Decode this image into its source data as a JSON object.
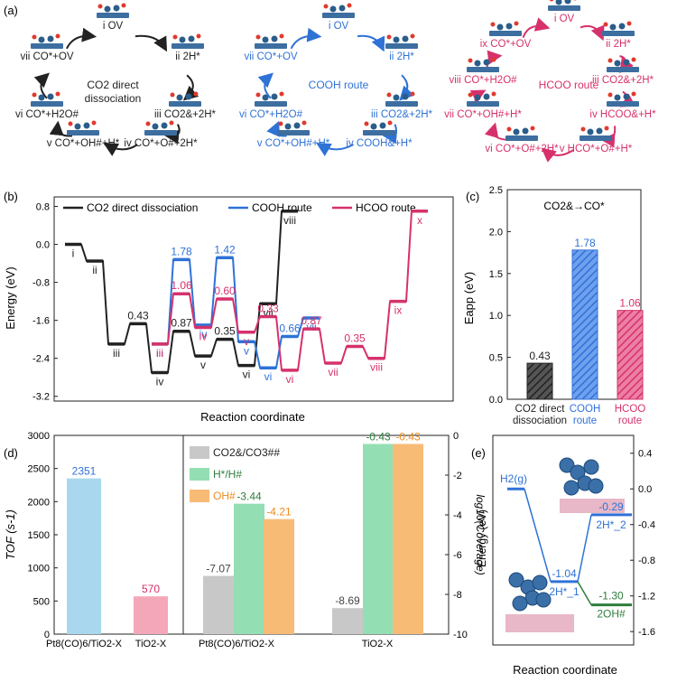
{
  "colors": {
    "black": "#222222",
    "blue": "#2f72d6",
    "red": "#d6316c",
    "green": "#2e7d3e",
    "orange": "#f08a1c",
    "light_blue": "#a9d8ee",
    "pink": "#f4a7b9",
    "gray": "#c8c8c8",
    "mint": "#93dfb3",
    "peach": "#f8bb76"
  },
  "panel_a": {
    "label": "(a)",
    "cycles": [
      {
        "name": "CO2 direct dissociation",
        "title_line1": "CO2 direct",
        "title_line2": "dissociation",
        "color": "#222222",
        "states": [
          {
            "num": "i",
            "text": "OV"
          },
          {
            "num": "ii",
            "text": "2H*"
          },
          {
            "num": "iii",
            "text": "CO2&+2H*"
          },
          {
            "num": "iv",
            "text": "CO*+O#+2H*"
          },
          {
            "num": "v",
            "text": "CO*+OH#+H*"
          },
          {
            "num": "vi",
            "text": "CO*+H2O#"
          },
          {
            "num": "vii",
            "text": "CO*+OV"
          }
        ]
      },
      {
        "name": "COOH route",
        "title_line1": "COOH route",
        "title_line2": "",
        "color": "#2f72d6",
        "states": [
          {
            "num": "i",
            "text": "OV"
          },
          {
            "num": "ii",
            "text": "2H*"
          },
          {
            "num": "iii",
            "text": "CO2&+2H*"
          },
          {
            "num": "iv",
            "text": "COOH&+H*"
          },
          {
            "num": "v",
            "text": "CO*+OH#+H*"
          },
          {
            "num": "vi",
            "text": "CO*+H2O#"
          },
          {
            "num": "vii",
            "text": "CO*+OV"
          }
        ]
      },
      {
        "name": "HCOO route",
        "title_line1": "HCOO route",
        "title_line2": "",
        "color": "#d6316c",
        "states": [
          {
            "num": "i",
            "text": "OV"
          },
          {
            "num": "ii",
            "text": "2H*"
          },
          {
            "num": "iii",
            "text": "CO2&+2H*"
          },
          {
            "num": "iv",
            "text": "HCOO&+H*"
          },
          {
            "num": "v",
            "text": "HCO*+O#+H*"
          },
          {
            "num": "vi",
            "text": "CO*+O#+2H*"
          },
          {
            "num": "vii",
            "text": "CO*+OH#+H*"
          },
          {
            "num": "viii",
            "text": "CO*+H2O#"
          },
          {
            "num": "ix",
            "text": "CO*+OV"
          }
        ]
      }
    ]
  },
  "chart_data": [
    {
      "panel": "(b)",
      "type": "line",
      "title": "",
      "xlabel": "Reaction coordinate",
      "ylabel": "Energy (eV)",
      "ylim": [
        -3.3,
        1.0
      ],
      "yticks": [
        "0.8",
        "0.0",
        "-0.8",
        "-1.6",
        "-2.4",
        "-3.2"
      ],
      "series": [
        {
          "name": "CO2 direct dissociation",
          "labels": [
            "i",
            "ii",
            "iii",
            "iv",
            "v",
            "vi",
            "vii",
            "viii"
          ],
          "values": [
            0.0,
            -0.35,
            -2.1,
            -2.7,
            -2.35,
            -2.55,
            -1.25,
            0.7
          ],
          "barriers": [
            0.43,
            0.87,
            0.35
          ]
        },
        {
          "name": "COOH route",
          "labels": [
            "iii",
            "iv",
            "v",
            "vi",
            "vii"
          ],
          "values": [
            -2.1,
            -1.7,
            -2.05,
            -2.6,
            -1.55
          ],
          "barriers": [
            1.78,
            1.42,
            0.66
          ]
        },
        {
          "name": "HCOO route",
          "labels": [
            "iii",
            "iv",
            "v",
            "vi",
            "vii",
            "viii",
            "ix",
            "x"
          ],
          "values": [
            -2.1,
            -1.75,
            -1.85,
            -2.65,
            -2.5,
            -2.4,
            -1.2,
            0.7
          ],
          "barriers": [
            1.06,
            0.6,
            0.33,
            0.87,
            0.35
          ]
        }
      ]
    },
    {
      "panel": "(c)",
      "type": "bar",
      "title": "CO2&→CO*",
      "xlabel": "",
      "ylabel": "Eapp (eV)",
      "ylim": [
        0,
        2.5
      ],
      "yticks": [
        "0.0",
        "0.5",
        "1.0",
        "1.5",
        "2.0",
        "2.5"
      ],
      "categories": [
        "CO2 direct dissociation",
        "COOH route",
        "HCOO route"
      ],
      "category_lines": [
        [
          "CO2 direct",
          "dissociation"
        ],
        [
          "COOH",
          "route"
        ],
        [
          "HCOO",
          "route"
        ]
      ],
      "values": [
        0.43,
        1.78,
        1.06
      ],
      "value_labels": [
        "0.43",
        "1.78",
        "1.06"
      ]
    },
    {
      "panel": "(d)",
      "type": "bar",
      "xlabel": "",
      "ylabel": "TOF (s-1)",
      "ylim": [
        0,
        3000
      ],
      "yticks": [
        "0",
        "500",
        "1000",
        "1500",
        "2000",
        "2500",
        "3000"
      ],
      "categories": [
        "Pt8(CO)6/TiO2-X",
        "TiO2-X"
      ],
      "values": [
        2351,
        570
      ],
      "value_labels": [
        "2351",
        "570"
      ],
      "coverage": {
        "ylabel": "log10(Coverage)",
        "ylim": [
          -10,
          0
        ],
        "yticks": [
          "0",
          "-2",
          "-4",
          "-6",
          "-8",
          "-10"
        ],
        "categories": [
          "Pt8(CO)6/TiO2-X",
          "TiO2-X"
        ],
        "series": [
          {
            "name": "CO2&/CO3##",
            "values": [
              -7.07,
              -8.69
            ],
            "labels": [
              "-7.07",
              "-8.69"
            ]
          },
          {
            "name": "H*/H#",
            "values": [
              -3.44,
              -0.43
            ],
            "labels": [
              "-3.44",
              "-0.43"
            ]
          },
          {
            "name": "OH#",
            "values": [
              -4.21,
              -0.43
            ],
            "labels": [
              "-4.21",
              "-0.43"
            ]
          }
        ]
      }
    },
    {
      "panel": "(e)",
      "type": "line",
      "xlabel": "Reaction coordinate",
      "ylabel": "Energy (eV)",
      "ylim": [
        -1.75,
        0.6
      ],
      "yticks": [
        "0.4",
        "0.0",
        "-0.4",
        "-0.8",
        "-1.2",
        "-1.6"
      ],
      "levels": [
        {
          "name": "H2(g)",
          "value": 0.0,
          "label": ""
        },
        {
          "name": "2H*_1",
          "value": -1.04,
          "label": "-1.04"
        },
        {
          "name": "2H*_2",
          "value": -0.29,
          "label": "-0.29"
        },
        {
          "name": "2OH#",
          "value": -1.3,
          "label": "-1.30"
        }
      ]
    }
  ]
}
